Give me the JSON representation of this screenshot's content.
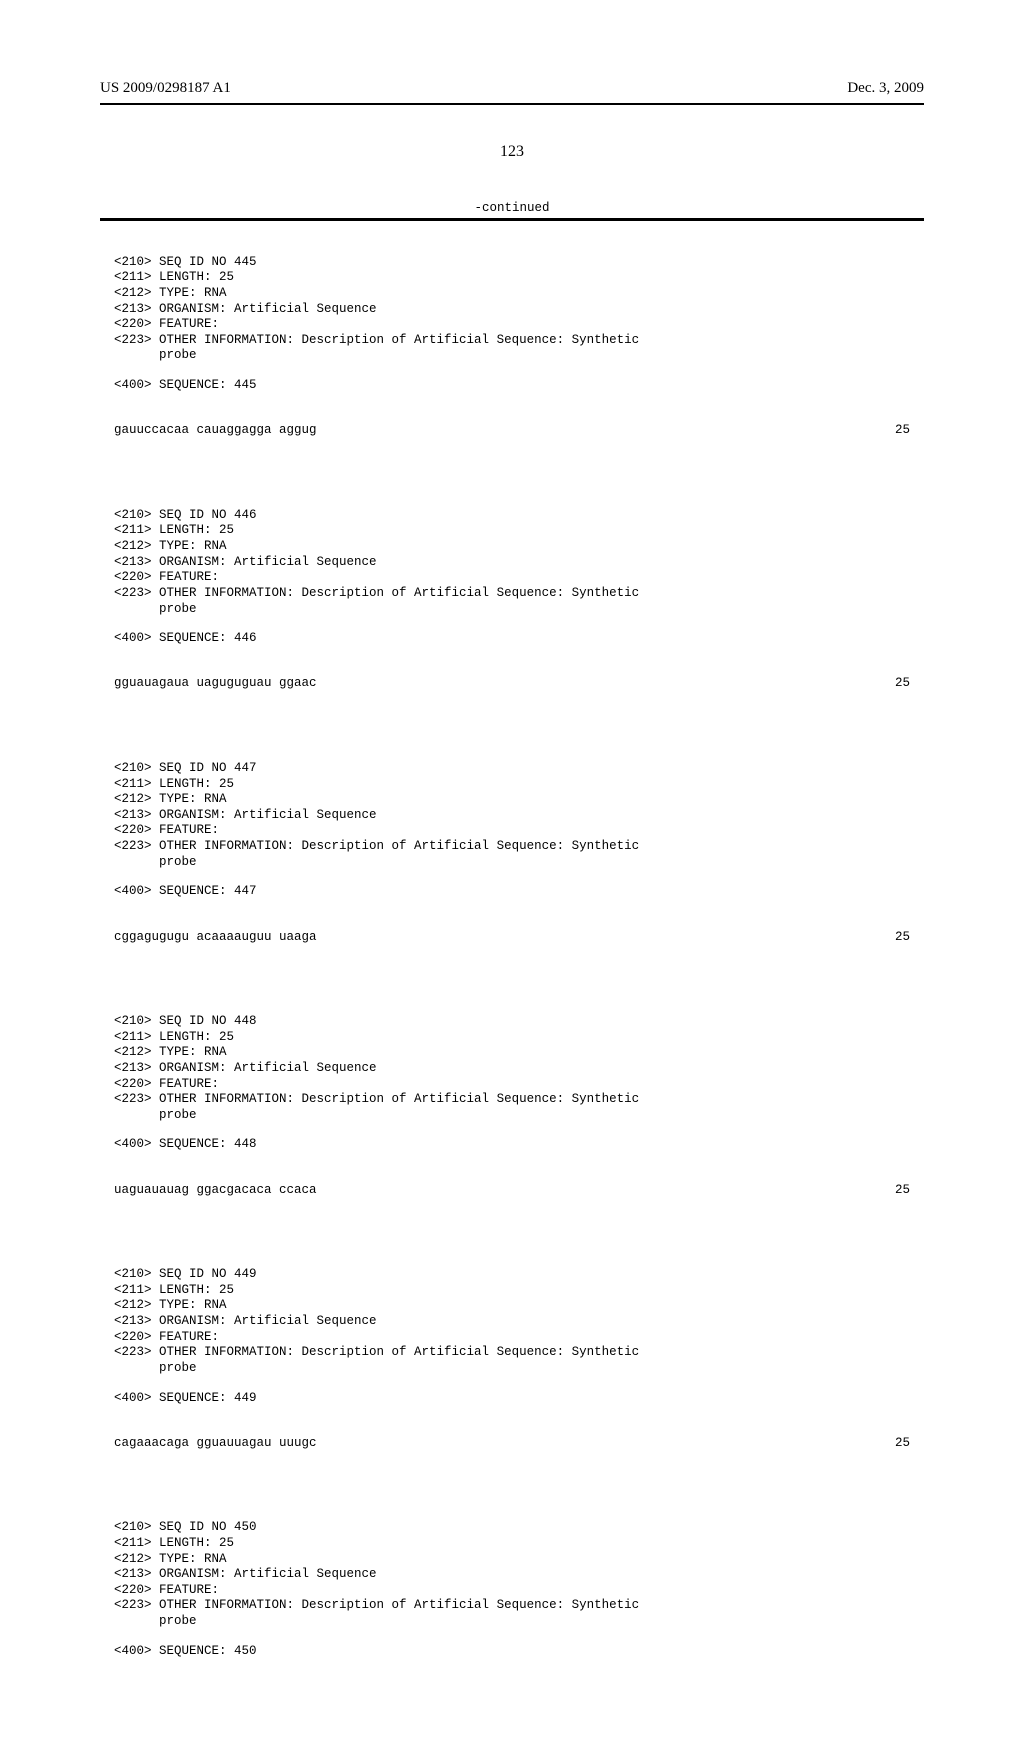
{
  "header": {
    "pub_number": "US 2009/0298187 A1",
    "pub_date": "Dec. 3, 2009"
  },
  "page_number": "123",
  "continued_label": "-continued",
  "sequences": [
    {
      "id": "445",
      "length": "25",
      "type": "RNA",
      "organism": "Artificial Sequence",
      "feature": "",
      "other_info": "Description of Artificial Sequence: Synthetic",
      "other_info_2": "probe",
      "seq_label": "445",
      "seq_text": "gauuccacaa cauaggagga aggug",
      "seq_len": "25"
    },
    {
      "id": "446",
      "length": "25",
      "type": "RNA",
      "organism": "Artificial Sequence",
      "feature": "",
      "other_info": "Description of Artificial Sequence: Synthetic",
      "other_info_2": "probe",
      "seq_label": "446",
      "seq_text": "gguauagaua uaguguguau ggaac",
      "seq_len": "25"
    },
    {
      "id": "447",
      "length": "25",
      "type": "RNA",
      "organism": "Artificial Sequence",
      "feature": "",
      "other_info": "Description of Artificial Sequence: Synthetic",
      "other_info_2": "probe",
      "seq_label": "447",
      "seq_text": "cggagugugu acaaaauguu uaaga",
      "seq_len": "25"
    },
    {
      "id": "448",
      "length": "25",
      "type": "RNA",
      "organism": "Artificial Sequence",
      "feature": "",
      "other_info": "Description of Artificial Sequence: Synthetic",
      "other_info_2": "probe",
      "seq_label": "448",
      "seq_text": "uaguauauag ggacgacaca ccaca",
      "seq_len": "25"
    },
    {
      "id": "449",
      "length": "25",
      "type": "RNA",
      "organism": "Artificial Sequence",
      "feature": "",
      "other_info": "Description of Artificial Sequence: Synthetic",
      "other_info_2": "probe",
      "seq_label": "449",
      "seq_text": "cagaaacaga gguauuagau uuugc",
      "seq_len": "25"
    },
    {
      "id": "450",
      "length": "25",
      "type": "RNA",
      "organism": "Artificial Sequence",
      "feature": "",
      "other_info": "Description of Artificial Sequence: Synthetic",
      "other_info_2": "probe",
      "seq_label": "450",
      "seq_text": "",
      "seq_len": ""
    }
  ],
  "labels": {
    "seq_id": "<210> SEQ ID NO ",
    "length": "<211> LENGTH: ",
    "type": "<212> TYPE: ",
    "organism": "<213> ORGANISM: ",
    "feature": "<220> FEATURE:",
    "other": "<223> OTHER INFORMATION: ",
    "indent": "      ",
    "seq400": "<400> SEQUENCE: "
  }
}
